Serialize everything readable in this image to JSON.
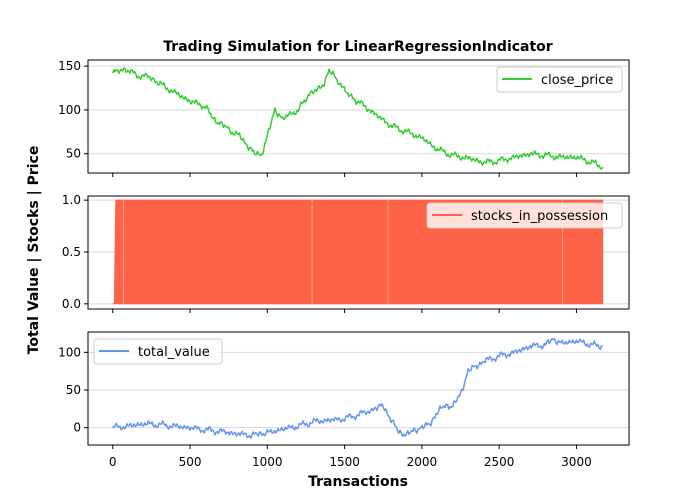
{
  "chart_data": {
    "title": "Trading Simulation for LinearRegressionIndicator",
    "xlabel": "Transactions",
    "ylabel": "Total Value | Stocks | Price",
    "type": "line",
    "x_range": [
      0,
      3180
    ],
    "x_ticks": [
      0,
      500,
      1000,
      1500,
      2000,
      2500,
      3000
    ],
    "grid": "y-only",
    "panels": [
      {
        "id": "price",
        "type": "line",
        "legend": "close_price",
        "legend_position": "top-right",
        "color": "#33cc33",
        "ylim": [
          28,
          157
        ],
        "y_ticks": [
          50,
          100,
          150
        ],
        "x": [
          0,
          80,
          150,
          250,
          300,
          400,
          500,
          600,
          650,
          700,
          750,
          820,
          870,
          920,
          960,
          1000,
          1050,
          1100,
          1200,
          1280,
          1350,
          1400,
          1450,
          1520,
          1600,
          1700,
          1800,
          1900,
          2000,
          2100,
          2200,
          2300,
          2400,
          2500,
          2600,
          2700,
          2800,
          2900,
          3000,
          3100,
          3170
        ],
        "y": [
          142,
          147,
          140,
          137,
          130,
          120,
          110,
          104,
          90,
          84,
          78,
          70,
          60,
          50,
          48,
          70,
          100,
          90,
          100,
          120,
          125,
          145,
          135,
          118,
          108,
          95,
          82,
          75,
          68,
          55,
          48,
          45,
          40,
          42,
          46,
          50,
          48,
          46,
          46,
          40,
          35
        ]
      },
      {
        "id": "stocks",
        "type": "area",
        "legend": "stocks_in_possession",
        "legend_position": "top-right",
        "color": "#ff6347",
        "ylim": [
          -0.05,
          1.04
        ],
        "y_ticks": [
          0.0,
          0.5,
          1.0
        ],
        "y_tick_labels": [
          "0.0",
          "0.5",
          "1.0"
        ],
        "x": [
          0,
          10,
          20,
          3170
        ],
        "y": [
          0,
          0,
          1,
          1
        ],
        "gaps_at_x": [
          70,
          1290,
          1780,
          2910
        ]
      },
      {
        "id": "value",
        "type": "line",
        "legend": "total_value",
        "legend_position": "top-left",
        "color": "#6495ed",
        "ylim": [
          -23,
          127
        ],
        "y_ticks": [
          0,
          50,
          100
        ],
        "x": [
          0,
          100,
          200,
          300,
          400,
          500,
          600,
          700,
          800,
          900,
          950,
          1000,
          1100,
          1200,
          1300,
          1400,
          1500,
          1600,
          1700,
          1750,
          1800,
          1850,
          1900,
          1950,
          2000,
          2050,
          2100,
          2150,
          2200,
          2250,
          2300,
          2350,
          2400,
          2500,
          2600,
          2700,
          2800,
          2850,
          2900,
          3000,
          3100,
          3170
        ],
        "y": [
          0,
          2,
          5,
          4,
          2,
          0,
          -3,
          -5,
          -8,
          -10,
          -8,
          -7,
          -2,
          2,
          8,
          10,
          12,
          18,
          25,
          30,
          10,
          -5,
          -10,
          -3,
          0,
          5,
          20,
          30,
          28,
          45,
          75,
          82,
          88,
          95,
          100,
          108,
          110,
          118,
          112,
          115,
          110,
          108
        ]
      }
    ]
  }
}
